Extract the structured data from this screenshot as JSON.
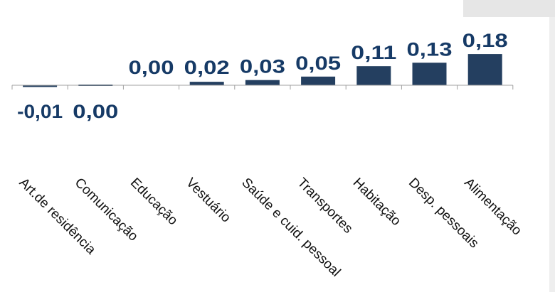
{
  "chart_data": {
    "type": "bar",
    "categories": [
      "Art.de residência",
      "Comunicação",
      "Educação",
      "Vestuário",
      "Saúde e cuid. pessoal",
      "Transportes",
      "Habitação",
      "Desp. pessoais",
      "Alimentação"
    ],
    "values": [
      -0.01,
      0.0,
      0.0,
      0.02,
      0.03,
      0.05,
      0.11,
      0.13,
      0.18
    ],
    "data_labels": [
      "-0,01",
      "0,00",
      "0,00",
      "0,02",
      "0,03",
      "0,05",
      "0,11",
      "0,13",
      "0,18"
    ],
    "title": "",
    "xlabel": "",
    "ylabel": "",
    "grid": false,
    "legend": "none",
    "colors": {
      "bar": "#243f60",
      "data_label": "#163a66",
      "axis": "#a0a0a0"
    }
  }
}
